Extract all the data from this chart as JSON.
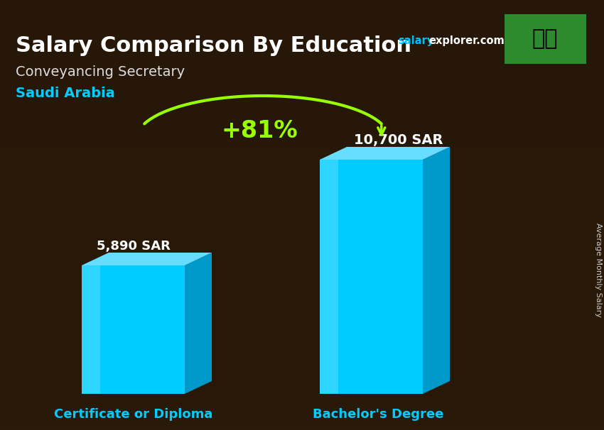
{
  "title": "Salary Comparison By Education",
  "subtitle": "Conveyancing Secretary",
  "country": "Saudi Arabia",
  "website_salary": "salary",
  "website_explorer": "explorer.com",
  "ylabel": "Average Monthly Salary",
  "categories": [
    "Certificate or Diploma",
    "Bachelor's Degree"
  ],
  "values": [
    5890,
    10700
  ],
  "value_labels": [
    "5,890 SAR",
    "10,700 SAR"
  ],
  "pct_change": "+81%",
  "bar_color_main": "#00CCFF",
  "bar_color_side": "#0099CC",
  "bar_color_top": "#66DDFF",
  "pct_color": "#99FF00",
  "title_color": "#FFFFFF",
  "subtitle_color": "#DDDDDD",
  "country_color": "#00CCFF",
  "xlabel_color": "#00CCFF",
  "value_label_color": "#FFFFFF",
  "bg_color": "#2a1a0a",
  "flag_bg": "#2d8a2d",
  "ylabel_color": "#CCCCCC"
}
